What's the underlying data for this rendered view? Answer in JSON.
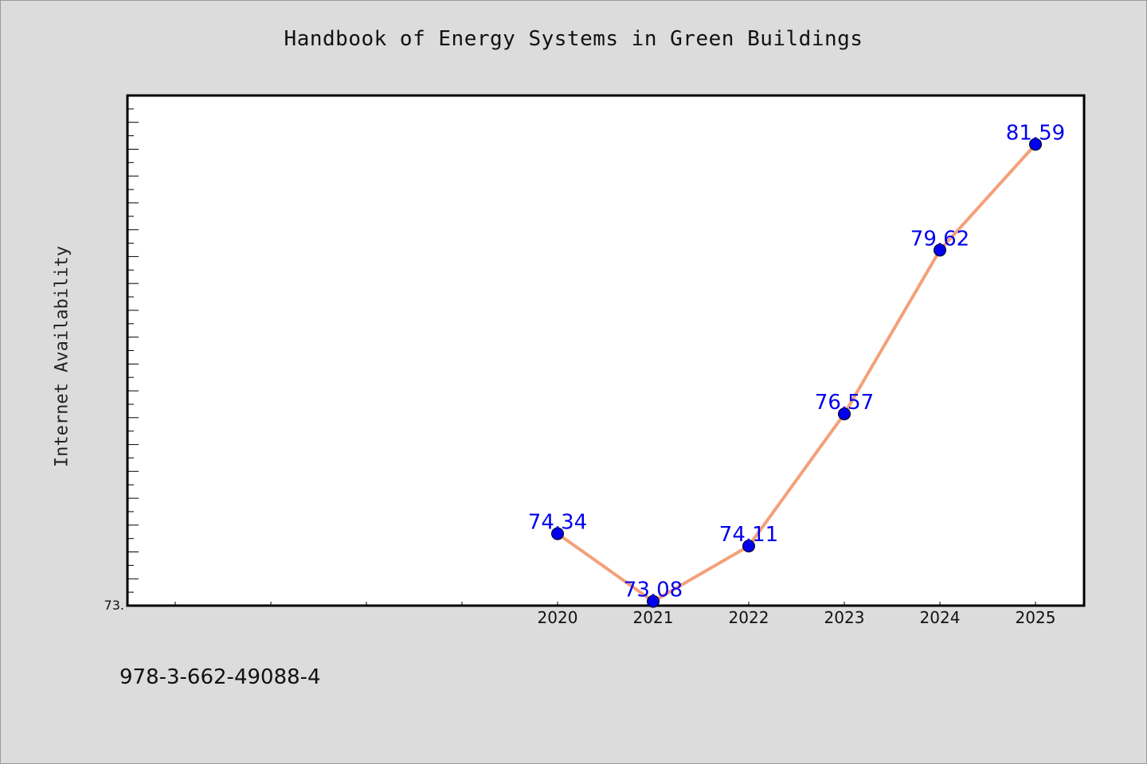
{
  "chart_data": {
    "type": "line",
    "title": "Handbook of Energy Systems in Green Buildings",
    "xlabel": "",
    "ylabel": "Internet Availability",
    "x": [
      "2020",
      "2021",
      "2022",
      "2023",
      "2024",
      "2025"
    ],
    "series": [
      {
        "values": [
          74.34,
          73.08,
          74.11,
          76.57,
          79.62,
          81.59
        ],
        "data_labels": [
          "74.34",
          "73.08",
          "74.11",
          "76.57",
          "79.62",
          "81.59"
        ]
      }
    ],
    "y_axis_min_label": "73.",
    "ylim": [
      73.0,
      82.5
    ],
    "grid": false,
    "line_color": "#f4a07a",
    "marker_color": "#0000ee",
    "label_color": "#0000ee",
    "plot_background": "#ffffff"
  },
  "footer": {
    "isbn": "978-3-662-49088-4"
  }
}
